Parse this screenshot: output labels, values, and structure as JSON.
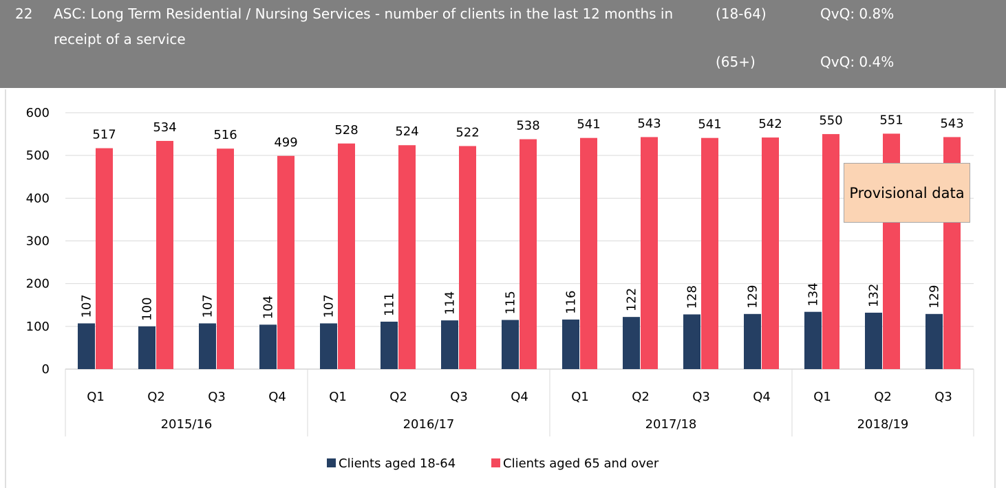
{
  "header": {
    "number": "22",
    "title": "ASC: Long Term Residential / Nursing Services - number of clients in the last 12 months in receipt of a service",
    "row1_label": "(18-64)",
    "row1_value": "QvQ: 0.8%",
    "row2_label": "(65+)",
    "row2_value": "QvQ: 0.4%"
  },
  "chart_data": {
    "type": "bar",
    "groups": [
      {
        "name": "2015/16",
        "categories": [
          "Q1",
          "Q2",
          "Q3",
          "Q4"
        ]
      },
      {
        "name": "2016/17",
        "categories": [
          "Q1",
          "Q2",
          "Q3",
          "Q4"
        ]
      },
      {
        "name": "2017/18",
        "categories": [
          "Q1",
          "Q2",
          "Q3",
          "Q4"
        ]
      },
      {
        "name": "2018/19",
        "categories": [
          "Q1",
          "Q2",
          "Q3"
        ]
      }
    ],
    "series": [
      {
        "name": "Clients aged 18-64",
        "color": "#253f63",
        "values": [
          107,
          100,
          107,
          104,
          107,
          111,
          114,
          115,
          116,
          122,
          128,
          129,
          134,
          132,
          129
        ]
      },
      {
        "name": "Clients aged 65 and over",
        "color": "#f4495c",
        "values": [
          517,
          534,
          516,
          499,
          528,
          524,
          522,
          538,
          541,
          543,
          541,
          542,
          550,
          551,
          543
        ]
      }
    ],
    "ylim": [
      0,
      600
    ],
    "yticks": [
      0,
      100,
      200,
      300,
      400,
      500,
      600
    ],
    "grid": true,
    "annotation": "Provisional data",
    "legend": "bottom"
  }
}
